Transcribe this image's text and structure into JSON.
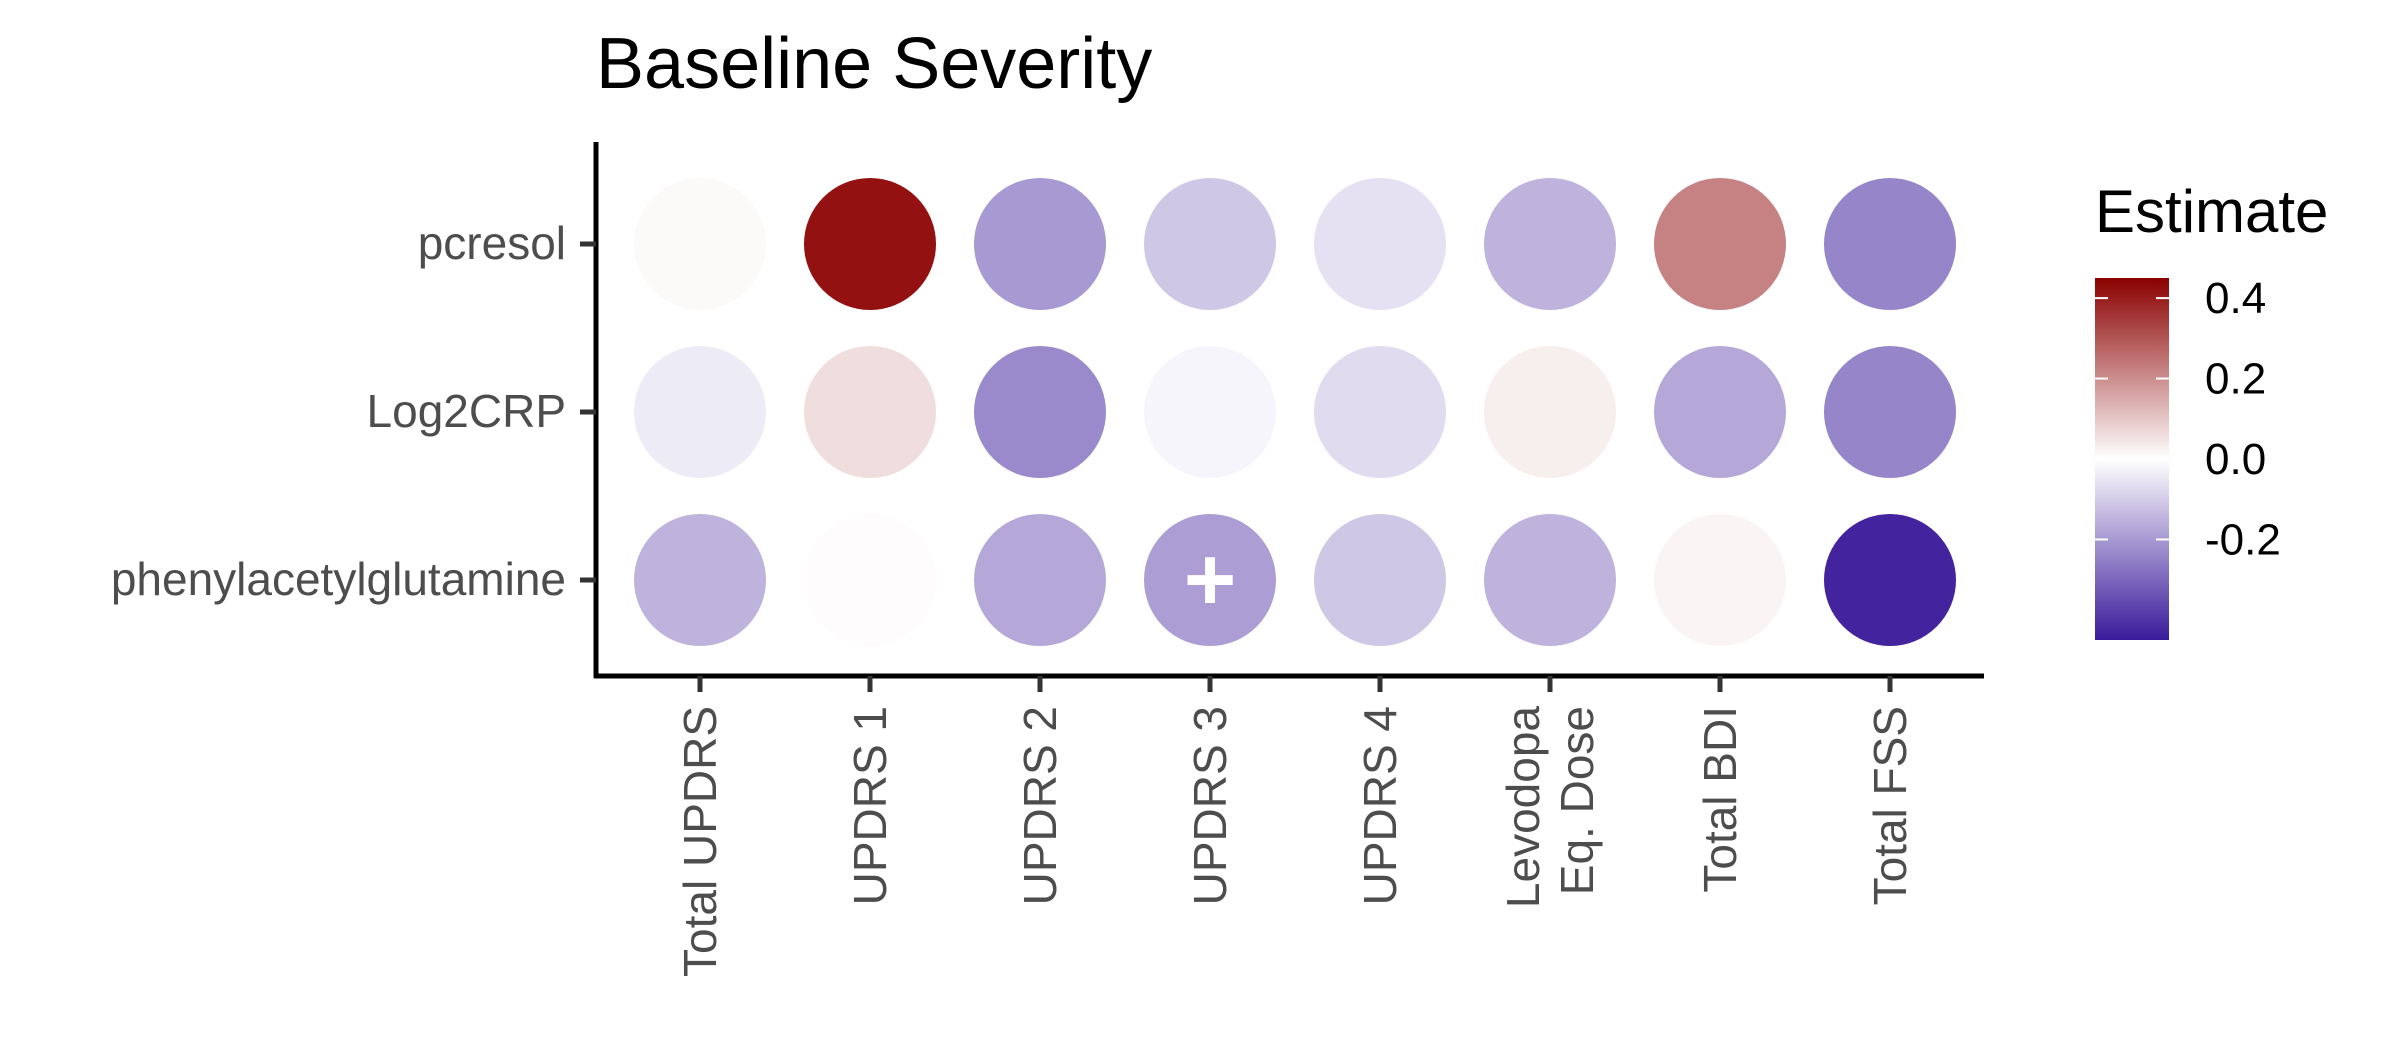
{
  "chart_data": {
    "type": "heatmap",
    "title": "Baseline Severity",
    "xlabel": "",
    "ylabel": "",
    "x_categories": [
      "Total UPDRS",
      "UPDRS 1",
      "UPDRS 2",
      "UPDRS 3",
      "UPDRS 4",
      "Levodopa\nEq. Dose",
      "Total BDI",
      "Total FSS"
    ],
    "y_categories": [
      "pcresol",
      "Log2CRP",
      "phenylacetylglutamine"
    ],
    "values": [
      [
        0.01,
        0.42,
        -0.2,
        -0.11,
        -0.06,
        -0.15,
        0.22,
        -0.24
      ],
      [
        -0.04,
        0.06,
        -0.23,
        -0.02,
        -0.07,
        0.03,
        -0.17,
        -0.24
      ],
      [
        -0.15,
        0.005,
        -0.17,
        -0.19,
        -0.11,
        -0.15,
        0.02,
        -0.43
      ]
    ],
    "markers": [
      {
        "row": 2,
        "col": 3,
        "symbol": "+"
      }
    ],
    "legend": {
      "title": "Estimate",
      "ticks": [
        "0.4",
        "0.2",
        "0.0",
        "-0.2"
      ],
      "tick_values": [
        0.4,
        0.2,
        0.0,
        -0.2
      ],
      "range": [
        -0.45,
        0.45
      ],
      "colors": {
        "high": "#8B0000",
        "mid": "#FFFFFF",
        "low": "#3A1A9A"
      },
      "placement": "right"
    }
  }
}
